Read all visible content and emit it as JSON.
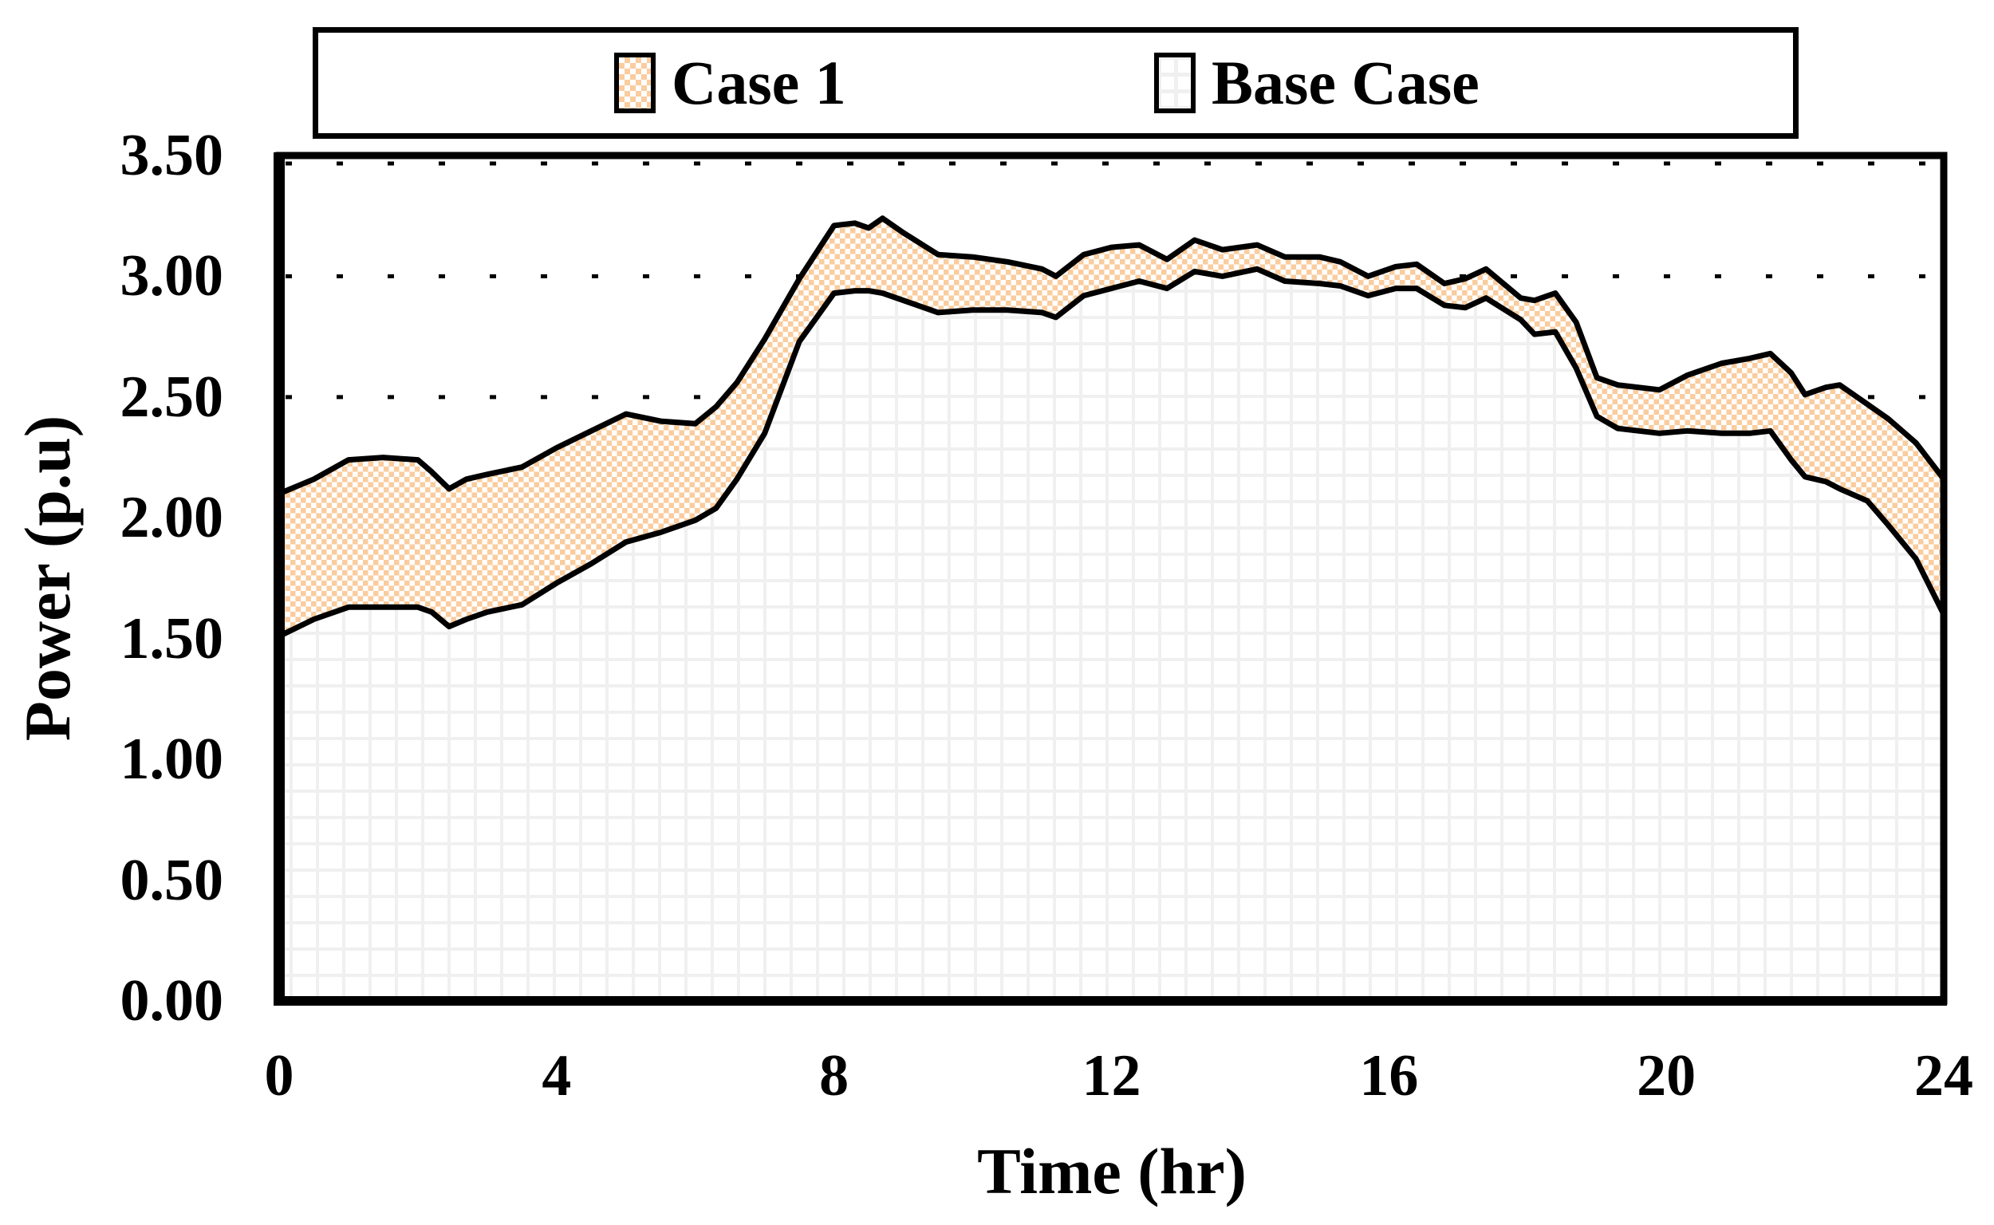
{
  "colors": {
    "case1_fill": "#FACC9E",
    "base_grid": "#F0F0F0",
    "line": "#000000",
    "background": "#FFFFFF"
  },
  "legend": {
    "items": [
      {
        "label": "Case 1",
        "swatch": "orange-checkerboard"
      },
      {
        "label": "Base Case",
        "swatch": "white-grid"
      }
    ]
  },
  "chart_data": {
    "type": "area",
    "title": "",
    "xlabel": "Time (hr)",
    "ylabel": "Power (p.u)",
    "xlim": [
      0,
      24
    ],
    "ylim": [
      0,
      3.5
    ],
    "x_ticks": [
      0,
      4,
      8,
      12,
      16,
      20,
      24
    ],
    "y_ticks": [
      "0.00",
      "0.50",
      "1.00",
      "1.50",
      "2.00",
      "2.50",
      "3.00",
      "3.50"
    ],
    "grid": {
      "horizontal": "dotted",
      "color": "#000000"
    },
    "legend_position": "top",
    "x": [
      0,
      0.5,
      1,
      1.5,
      2,
      2.2,
      2.45,
      2.7,
      3,
      3.5,
      4,
      4.5,
      5,
      5.5,
      6,
      6.3,
      6.6,
      7,
      7.5,
      8,
      8.3,
      8.5,
      8.7,
      9,
      9.5,
      10,
      10.5,
      11,
      11.2,
      11.6,
      12,
      12.4,
      12.8,
      13.2,
      13.6,
      14.1,
      14.5,
      15,
      15.3,
      15.7,
      16.1,
      16.4,
      16.8,
      17.1,
      17.4,
      17.9,
      18.1,
      18.4,
      18.7,
      19,
      19.3,
      19.9,
      20.3,
      20.8,
      21.2,
      21.5,
      21.8,
      22,
      22.3,
      22.5,
      22.9,
      23.2,
      23.6,
      24
    ],
    "series": [
      {
        "name": "Case 1",
        "fill": "orange checkerboard pattern",
        "color": "#FACC9E",
        "values": [
          2.1,
          2.16,
          2.24,
          2.25,
          2.24,
          2.19,
          2.12,
          2.16,
          2.18,
          2.21,
          2.29,
          2.36,
          2.43,
          2.4,
          2.39,
          2.46,
          2.56,
          2.74,
          2.99,
          3.21,
          3.22,
          3.2,
          3.24,
          3.18,
          3.09,
          3.08,
          3.06,
          3.03,
          3.0,
          3.09,
          3.12,
          3.13,
          3.07,
          3.15,
          3.11,
          3.13,
          3.08,
          3.08,
          3.06,
          3.0,
          3.04,
          3.05,
          2.97,
          2.99,
          3.03,
          2.91,
          2.9,
          2.93,
          2.81,
          2.58,
          2.55,
          2.53,
          2.59,
          2.64,
          2.66,
          2.68,
          2.6,
          2.51,
          2.54,
          2.55,
          2.47,
          2.41,
          2.31,
          2.16
        ]
      },
      {
        "name": "Base Case",
        "fill": "white with light gray grid pattern",
        "color": "#F0F0F0",
        "values": [
          1.51,
          1.58,
          1.63,
          1.63,
          1.63,
          1.61,
          1.55,
          1.58,
          1.61,
          1.64,
          1.73,
          1.81,
          1.9,
          1.94,
          1.99,
          2.04,
          2.16,
          2.35,
          2.73,
          2.93,
          2.94,
          2.94,
          2.93,
          2.9,
          2.85,
          2.86,
          2.86,
          2.85,
          2.83,
          2.92,
          2.95,
          2.98,
          2.95,
          3.02,
          3.0,
          3.03,
          2.98,
          2.97,
          2.96,
          2.92,
          2.95,
          2.95,
          2.88,
          2.87,
          2.91,
          2.82,
          2.76,
          2.77,
          2.62,
          2.42,
          2.37,
          2.35,
          2.36,
          2.35,
          2.35,
          2.36,
          2.24,
          2.17,
          2.15,
          2.12,
          2.07,
          1.97,
          1.83,
          1.6
        ]
      }
    ]
  }
}
